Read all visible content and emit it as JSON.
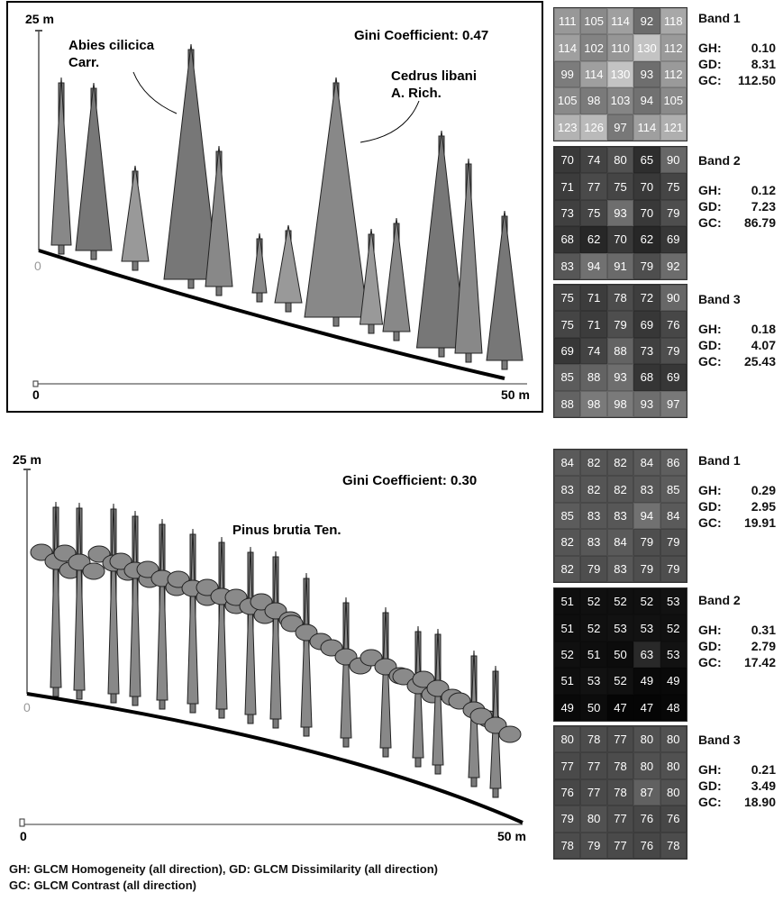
{
  "scene1": {
    "axis_top": "25 m",
    "axis_zero": "0",
    "x_start": "0",
    "x_end": "50 m",
    "gini": "Gini Coefficient: 0.47",
    "species_a_line1": "Abies cilicica",
    "species_a_line2": "Carr.",
    "species_b_line1": "Cedrus libani",
    "species_b_line2": "A. Rich."
  },
  "scene2": {
    "axis_top": "25 m",
    "axis_zero": "0",
    "x_start": "0",
    "x_end": "50 m",
    "gini": "Gini Coefficient: 0.30",
    "species": "Pinus brutia Ten."
  },
  "grids": [
    {
      "band": "Band 1",
      "gh": "0.10",
      "gd": "8.31",
      "gc": "112.50",
      "values": [
        [
          111,
          105,
          114,
          92,
          118
        ],
        [
          114,
          102,
          110,
          130,
          112
        ],
        [
          99,
          114,
          130,
          93,
          112
        ],
        [
          105,
          98,
          103,
          94,
          105
        ],
        [
          123,
          126,
          97,
          114,
          121
        ]
      ]
    },
    {
      "band": "Band 2",
      "gh": "0.12",
      "gd": "7.23",
      "gc": "86.79",
      "values": [
        [
          70,
          74,
          80,
          65,
          90
        ],
        [
          71,
          77,
          75,
          70,
          75
        ],
        [
          73,
          75,
          93,
          70,
          79
        ],
        [
          68,
          62,
          70,
          62,
          69
        ],
        [
          83,
          94,
          91,
          79,
          92
        ]
      ]
    },
    {
      "band": "Band 3",
      "gh": "0.18",
      "gd": "4.07",
      "gc": "25.43",
      "values": [
        [
          75,
          71,
          78,
          72,
          90
        ],
        [
          75,
          71,
          79,
          69,
          76
        ],
        [
          69,
          74,
          88,
          73,
          79
        ],
        [
          85,
          88,
          93,
          68,
          69
        ],
        [
          88,
          98,
          98,
          93,
          97
        ]
      ]
    },
    {
      "band": "Band 1",
      "gh": "0.29",
      "gd": "2.95",
      "gc": "19.91",
      "values": [
        [
          84,
          82,
          82,
          84,
          86
        ],
        [
          83,
          82,
          82,
          83,
          85
        ],
        [
          85,
          83,
          83,
          94,
          84
        ],
        [
          82,
          83,
          84,
          79,
          79
        ],
        [
          82,
          79,
          83,
          79,
          79
        ]
      ]
    },
    {
      "band": "Band 2",
      "gh": "0.31",
      "gd": "2.79",
      "gc": "17.42",
      "values": [
        [
          51,
          52,
          52,
          52,
          53
        ],
        [
          51,
          52,
          53,
          53,
          52
        ],
        [
          52,
          51,
          50,
          63,
          53
        ],
        [
          51,
          53,
          52,
          49,
          49
        ],
        [
          49,
          50,
          47,
          47,
          48
        ]
      ]
    },
    {
      "band": "Band 3",
      "gh": "0.21",
      "gd": "3.49",
      "gc": "18.90",
      "values": [
        [
          80,
          78,
          77,
          80,
          80
        ],
        [
          77,
          77,
          78,
          80,
          80
        ],
        [
          76,
          77,
          78,
          87,
          80
        ],
        [
          79,
          80,
          77,
          76,
          76
        ],
        [
          78,
          79,
          77,
          76,
          78
        ]
      ]
    }
  ],
  "stat_labels": {
    "gh": "GH:",
    "gd": "GD:",
    "gc": "GC:"
  },
  "footnote": {
    "line1": "GH: GLCM Homogeneity (all direction), GD: GLCM Dissimilarity (all direction)",
    "line2": "GC: GLCM Contrast (all direction)"
  }
}
